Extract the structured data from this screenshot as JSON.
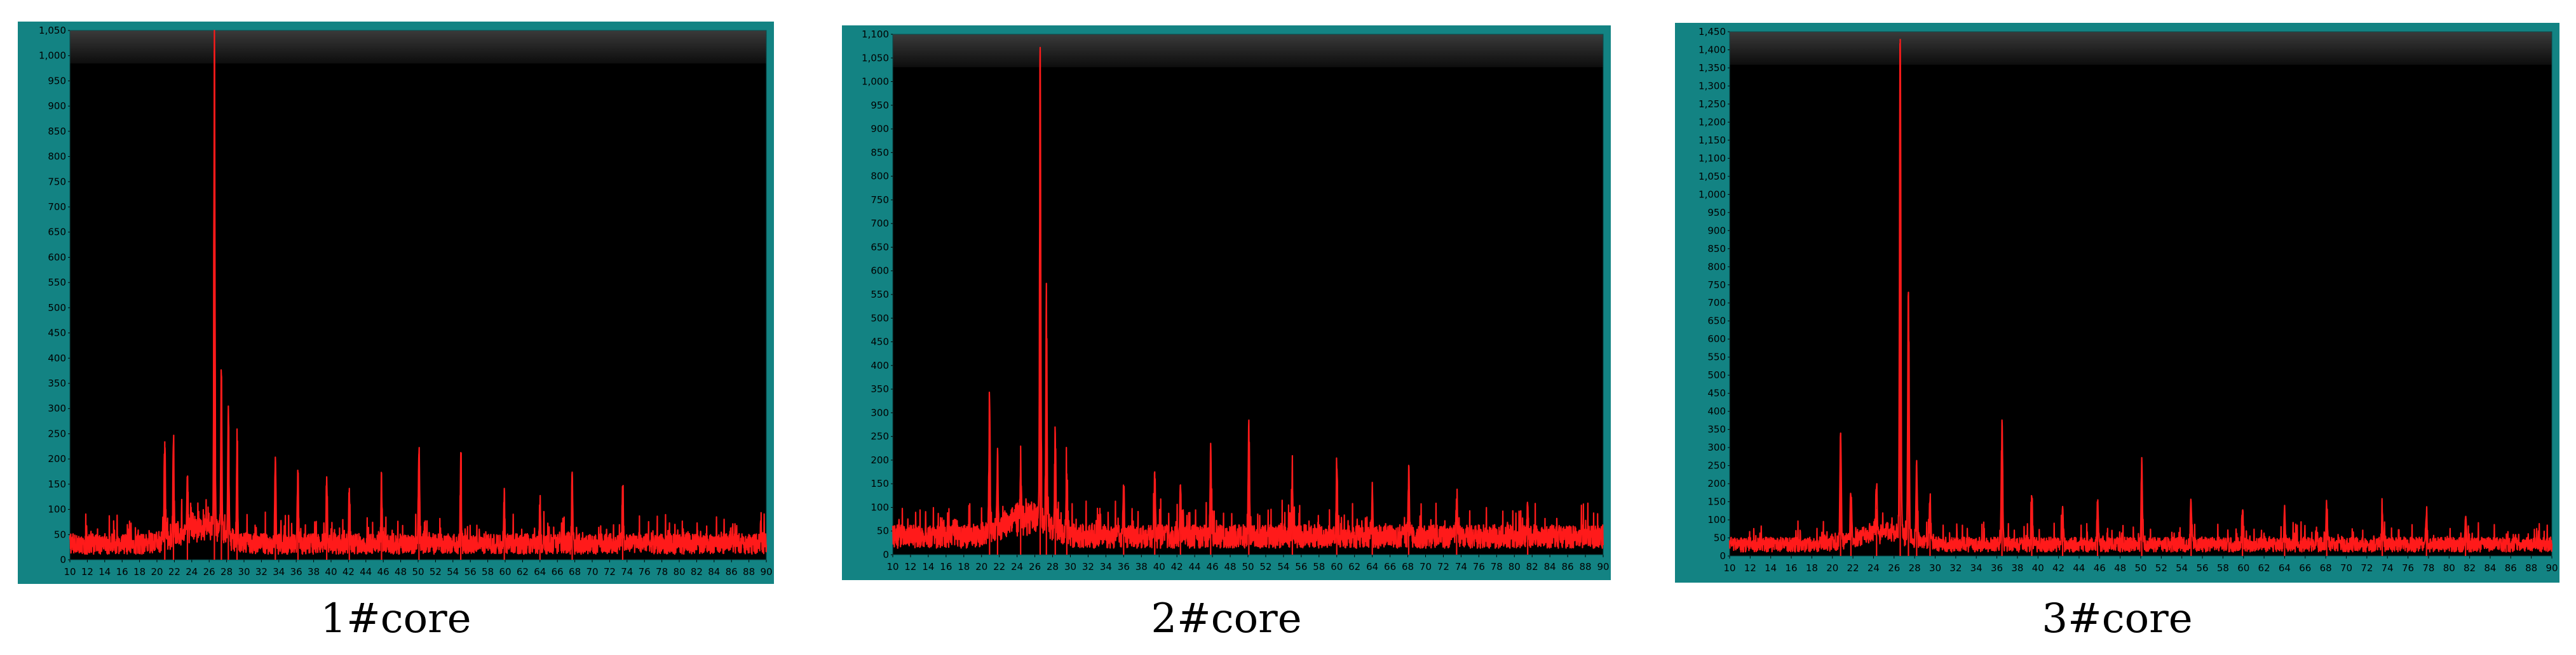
{
  "chart_data": [
    {
      "type": "line",
      "caption": "1#core",
      "xlim": [
        10,
        90
      ],
      "ylim": [
        0,
        1050
      ],
      "xticks": [
        10,
        12,
        14,
        16,
        18,
        20,
        22,
        24,
        26,
        28,
        30,
        32,
        34,
        36,
        38,
        40,
        42,
        44,
        46,
        48,
        50,
        52,
        54,
        56,
        58,
        60,
        62,
        64,
        66,
        68,
        70,
        72,
        74,
        76,
        78,
        80,
        82,
        84,
        86,
        88,
        90
      ],
      "ytick_labels": [
        "0",
        "50",
        "100",
        "150",
        "200",
        "250",
        "300",
        "350",
        "400",
        "450",
        "500",
        "550",
        "600",
        "650",
        "700",
        "750",
        "800",
        "850",
        "900",
        "950",
        "1,000",
        "1,050"
      ],
      "line_color": "#ff1a1a",
      "background": "#000000",
      "noise_level": 45,
      "peaks": [
        {
          "x": 20.9,
          "y": 235
        },
        {
          "x": 21.9,
          "y": 205
        },
        {
          "x": 23.5,
          "y": 110
        },
        {
          "x": 26.6,
          "y": 1010
        },
        {
          "x": 27.4,
          "y": 320
        },
        {
          "x": 28.2,
          "y": 270
        },
        {
          "x": 29.2,
          "y": 200
        },
        {
          "x": 33.6,
          "y": 185
        },
        {
          "x": 36.2,
          "y": 155
        },
        {
          "x": 39.5,
          "y": 145
        },
        {
          "x": 42.1,
          "y": 125
        },
        {
          "x": 45.8,
          "y": 130
        },
        {
          "x": 50.1,
          "y": 210
        },
        {
          "x": 54.9,
          "y": 165
        },
        {
          "x": 59.9,
          "y": 105
        },
        {
          "x": 64.0,
          "y": 90
        },
        {
          "x": 67.7,
          "y": 140
        },
        {
          "x": 73.5,
          "y": 110
        }
      ]
    },
    {
      "type": "line",
      "caption": "2#core",
      "xlim": [
        10,
        90
      ],
      "ylim": [
        0,
        1100
      ],
      "xticks": [
        10,
        12,
        14,
        16,
        18,
        20,
        22,
        24,
        26,
        28,
        30,
        32,
        34,
        36,
        38,
        40,
        42,
        44,
        46,
        48,
        50,
        52,
        54,
        56,
        58,
        60,
        62,
        64,
        66,
        68,
        70,
        72,
        74,
        76,
        78,
        80,
        82,
        84,
        86,
        88,
        90
      ],
      "ytick_labels": [
        "0",
        "50",
        "100",
        "150",
        "200",
        "250",
        "300",
        "350",
        "400",
        "450",
        "500",
        "550",
        "600",
        "650",
        "700",
        "750",
        "800",
        "850",
        "900",
        "950",
        "1,000",
        "1,050",
        "1,100"
      ],
      "line_color": "#ff1a1a",
      "background": "#000000",
      "noise_level": 55,
      "peaks": [
        {
          "x": 20.9,
          "y": 320
        },
        {
          "x": 21.8,
          "y": 180
        },
        {
          "x": 24.4,
          "y": 130
        },
        {
          "x": 26.6,
          "y": 1065
        },
        {
          "x": 27.3,
          "y": 500
        },
        {
          "x": 28.3,
          "y": 210
        },
        {
          "x": 29.6,
          "y": 140
        },
        {
          "x": 36.0,
          "y": 130
        },
        {
          "x": 39.5,
          "y": 140
        },
        {
          "x": 42.4,
          "y": 120
        },
        {
          "x": 45.8,
          "y": 210
        },
        {
          "x": 50.1,
          "y": 270
        },
        {
          "x": 55.0,
          "y": 140
        },
        {
          "x": 60.0,
          "y": 160
        },
        {
          "x": 64.0,
          "y": 100
        },
        {
          "x": 68.1,
          "y": 150
        },
        {
          "x": 73.5,
          "y": 90
        },
        {
          "x": 81.5,
          "y": 80
        }
      ]
    },
    {
      "type": "line",
      "caption": "3#core",
      "xlim": [
        10,
        90
      ],
      "ylim": [
        0,
        1450
      ],
      "xticks": [
        10,
        12,
        14,
        16,
        18,
        20,
        22,
        24,
        26,
        28,
        30,
        32,
        34,
        36,
        38,
        40,
        42,
        44,
        46,
        48,
        50,
        52,
        54,
        56,
        58,
        60,
        62,
        64,
        66,
        68,
        70,
        72,
        74,
        76,
        78,
        80,
        82,
        84,
        86,
        88,
        90
      ],
      "ytick_labels": [
        "0",
        "50",
        "100",
        "150",
        "200",
        "250",
        "300",
        "350",
        "400",
        "450",
        "500",
        "550",
        "600",
        "650",
        "700",
        "750",
        "800",
        "850",
        "900",
        "950",
        "1,000",
        "1,050",
        "1,100",
        "1,150",
        "1,200",
        "1,250",
        "1,300",
        "1,350",
        "1,400",
        "1,450"
      ],
      "line_color": "#ff1a1a",
      "background": "#000000",
      "noise_level": 45,
      "peaks": [
        {
          "x": 20.8,
          "y": 340
        },
        {
          "x": 21.8,
          "y": 160
        },
        {
          "x": 24.3,
          "y": 130
        },
        {
          "x": 26.6,
          "y": 1430
        },
        {
          "x": 27.4,
          "y": 700
        },
        {
          "x": 28.2,
          "y": 220
        },
        {
          "x": 29.5,
          "y": 130
        },
        {
          "x": 36.5,
          "y": 370
        },
        {
          "x": 39.4,
          "y": 150
        },
        {
          "x": 42.4,
          "y": 110
        },
        {
          "x": 45.8,
          "y": 120
        },
        {
          "x": 50.1,
          "y": 230
        },
        {
          "x": 54.9,
          "y": 135
        },
        {
          "x": 59.9,
          "y": 110
        },
        {
          "x": 64.0,
          "y": 90
        },
        {
          "x": 68.1,
          "y": 120
        },
        {
          "x": 73.5,
          "y": 100
        },
        {
          "x": 77.8,
          "y": 90
        },
        {
          "x": 81.6,
          "y": 80
        }
      ]
    }
  ]
}
